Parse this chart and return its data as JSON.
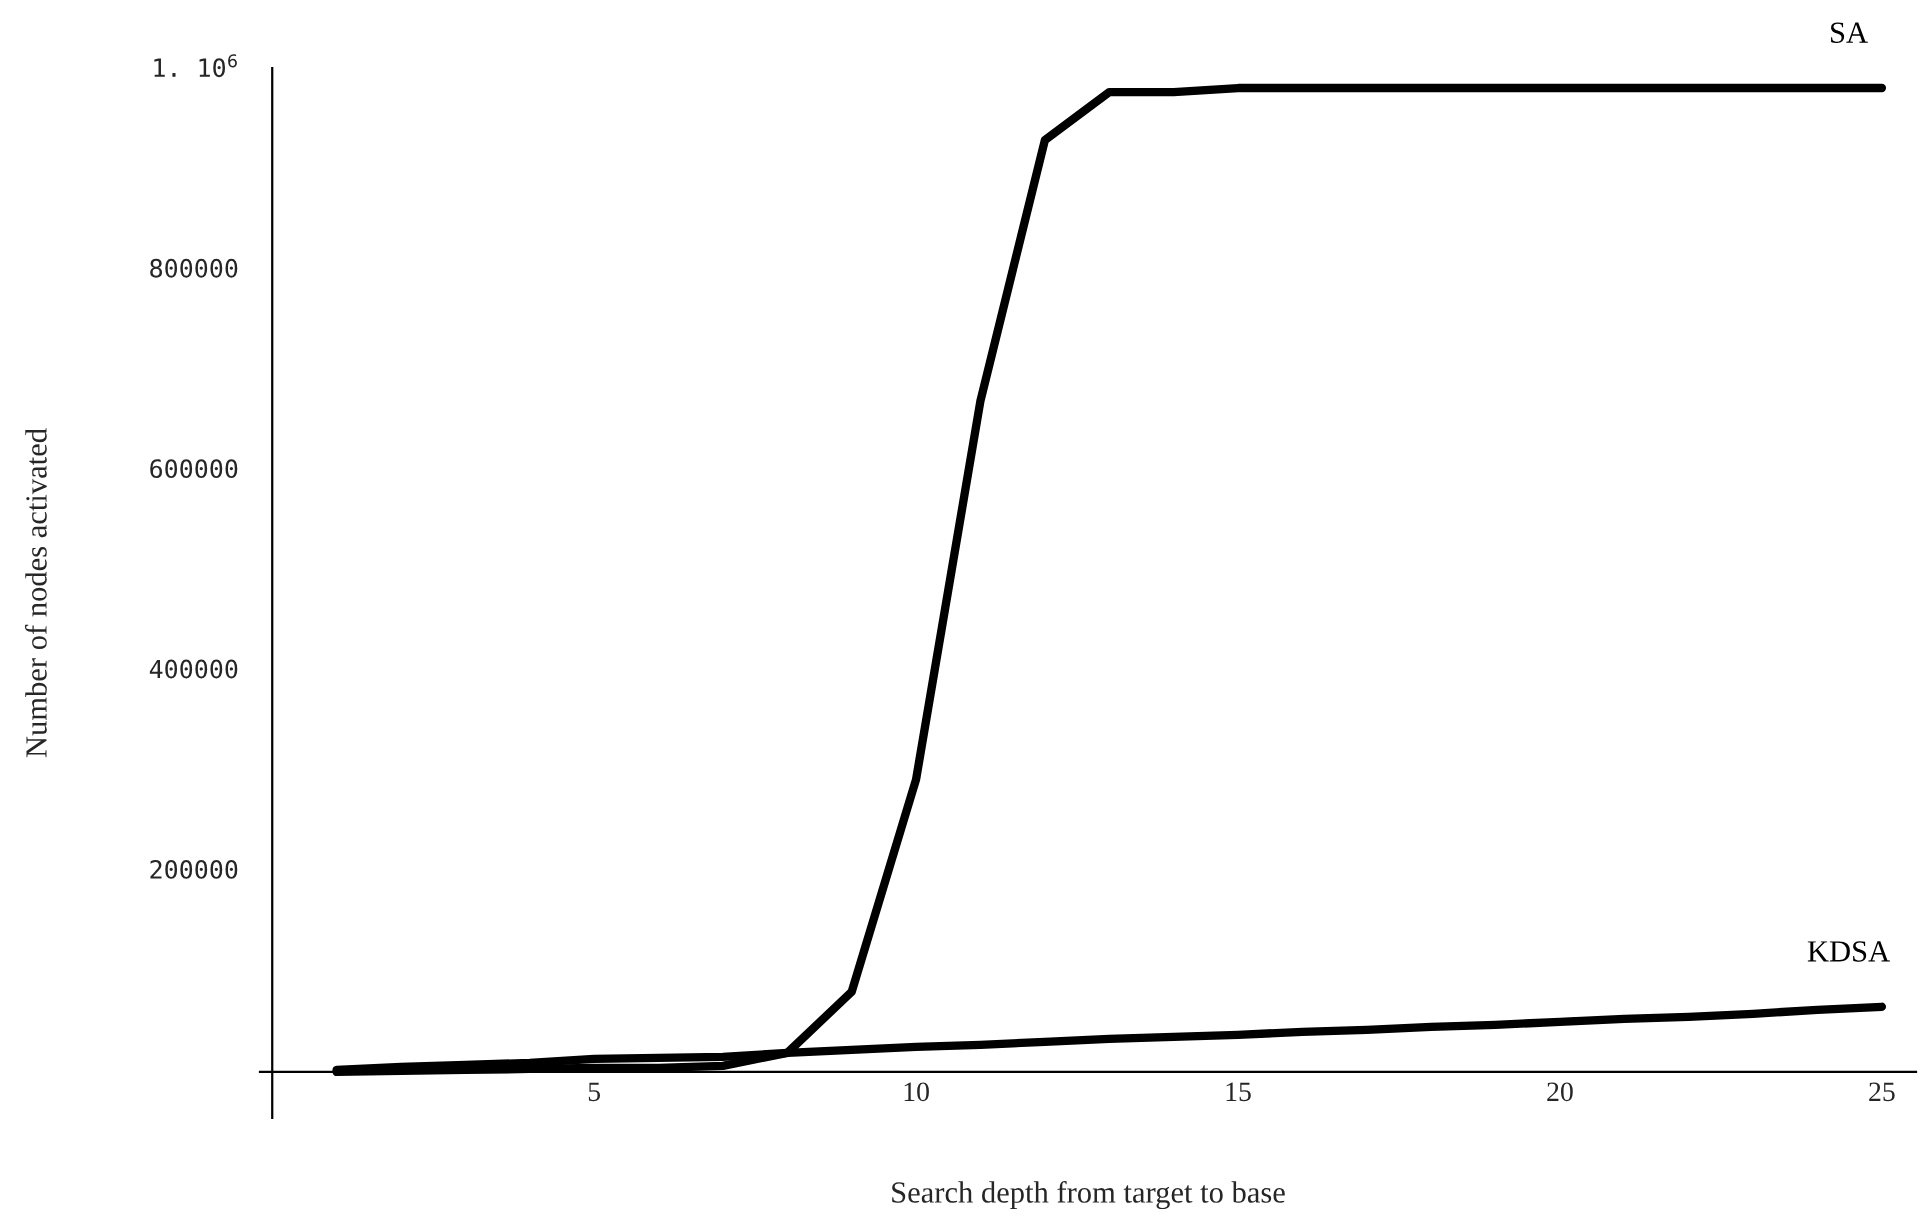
{
  "chart_data": {
    "type": "line",
    "xlabel": "Search depth from target to base",
    "ylabel": "Number of nodes activated",
    "x": [
      1,
      2,
      3,
      4,
      5,
      6,
      7,
      8,
      9,
      10,
      11,
      12,
      13,
      14,
      15,
      16,
      17,
      18,
      19,
      20,
      21,
      22,
      23,
      24,
      25
    ],
    "series": [
      {
        "name": "SA",
        "color": "#000000",
        "values": [
          0,
          1000,
          2000,
          3000,
          4000,
          4000,
          6000,
          19000,
          80000,
          292000,
          670000,
          930000,
          978000,
          978000,
          982000,
          982000,
          982000,
          982000,
          982000,
          982000,
          982000,
          982000,
          982000,
          982000,
          982000
        ]
      },
      {
        "name": "KDSA",
        "color": "#000000",
        "values": [
          2000,
          5000,
          7000,
          9000,
          13000,
          14000,
          15000,
          19000,
          22000,
          25000,
          27000,
          30000,
          33000,
          35000,
          37000,
          40000,
          42000,
          45000,
          47000,
          50000,
          53000,
          55000,
          58000,
          62000,
          65000
        ]
      }
    ],
    "xlim": [
      -0.19,
      25.53
    ],
    "ylim": [
      -46000,
      1002000
    ],
    "xticks": [
      5,
      10,
      15,
      20,
      25
    ],
    "yticks": [
      200000,
      400000,
      600000,
      800000,
      {
        "value": 1000000,
        "label": "1. 10$^{6}$"
      }
    ],
    "grid": false,
    "legend": false,
    "marker": "none",
    "line_style": "solid"
  }
}
